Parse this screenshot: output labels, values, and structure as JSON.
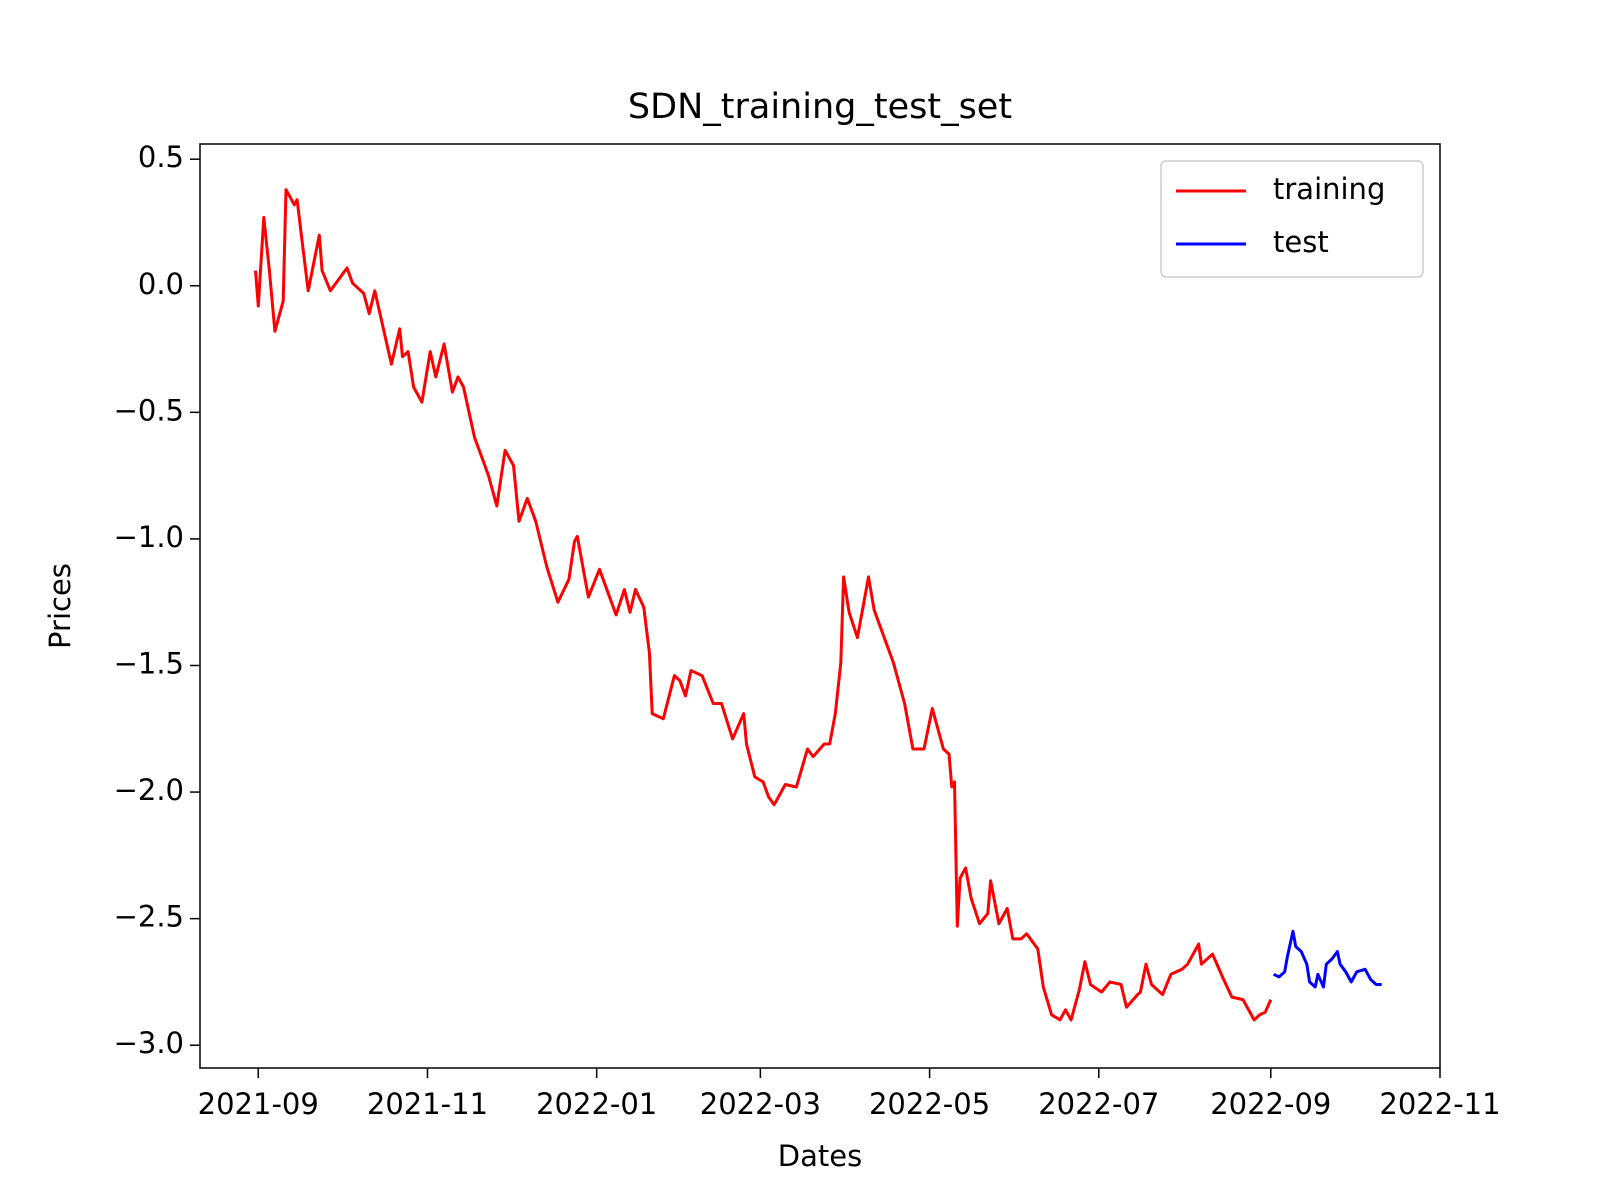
{
  "chart_data": {
    "type": "line",
    "title": "SDN_training_test_set",
    "x_label": "Dates",
    "y_label": "Prices",
    "legend": "upper right",
    "xlim": [
      "2021-08-11",
      "2022-11-01"
    ],
    "ylim": [
      -3.09,
      0.56
    ],
    "xticks": [
      "2021-09",
      "2021-11",
      "2022-01",
      "2022-03",
      "2022-05",
      "2022-07",
      "2022-09",
      "2022-11"
    ],
    "yticks": [
      0.5,
      {
        "value": 0,
        "label": "0.0"
      },
      {
        "value": -0.5,
        "label": "−0.5"
      },
      {
        "value": -1.0,
        "label": "−1.0"
      },
      {
        "value": -1.5,
        "label": "−1.5"
      },
      {
        "value": -2.0,
        "label": "−2.0"
      },
      {
        "value": -2.5,
        "label": "−2.5"
      },
      {
        "value": -3.0,
        "label": "−3.0"
      }
    ],
    "series": [
      {
        "name": "training",
        "color": "#ff0000",
        "x": [
          "2021-08-31",
          "2021-09-01",
          "2021-09-03",
          "2021-09-05",
          "2021-09-07",
          "2021-09-10",
          "2021-09-11",
          "2021-09-14",
          "2021-09-15",
          "2021-09-17",
          "2021-09-19",
          "2021-09-23",
          "2021-09-24",
          "2021-09-27",
          "2021-10-03",
          "2021-10-05",
          "2021-10-09",
          "2021-10-11",
          "2021-10-13",
          "2021-10-19",
          "2021-10-22",
          "2021-10-23",
          "2021-10-25",
          "2021-10-27",
          "2021-10-30",
          "2021-11-02",
          "2021-11-04",
          "2021-11-07",
          "2021-11-10",
          "2021-11-12",
          "2021-11-14",
          "2021-11-18",
          "2021-11-21",
          "2021-11-23",
          "2021-11-26",
          "2021-11-29",
          "2021-12-02",
          "2021-12-04",
          "2021-12-07",
          "2021-12-10",
          "2021-12-14",
          "2021-12-18",
          "2021-12-22",
          "2021-12-24",
          "2021-12-25",
          "2021-12-29",
          "2022-01-02",
          "2022-01-08",
          "2022-01-11",
          "2022-01-13",
          "2022-01-15",
          "2022-01-18",
          "2022-01-20",
          "2022-01-21",
          "2022-01-25",
          "2022-01-29",
          "2022-01-31",
          "2022-02-02",
          "2022-02-04",
          "2022-02-08",
          "2022-02-12",
          "2022-02-15",
          "2022-02-19",
          "2022-02-23",
          "2022-02-24",
          "2022-02-27",
          "2022-03-02",
          "2022-03-04",
          "2022-03-06",
          "2022-03-10",
          "2022-03-14",
          "2022-03-18",
          "2022-03-20",
          "2022-03-24",
          "2022-03-26",
          "2022-03-28",
          "2022-03-30",
          "2022-03-31",
          "2022-04-02",
          "2022-04-05",
          "2022-04-07",
          "2022-04-09",
          "2022-04-11",
          "2022-04-14",
          "2022-04-18",
          "2022-04-22",
          "2022-04-25",
          "2022-04-29",
          "2022-05-02",
          "2022-05-06",
          "2022-05-08",
          "2022-05-09",
          "2022-05-10",
          "2022-05-11",
          "2022-05-12",
          "2022-05-14",
          "2022-05-16",
          "2022-05-19",
          "2022-05-22",
          "2022-05-23",
          "2022-05-26",
          "2022-05-29",
          "2022-05-31",
          "2022-06-03",
          "2022-06-05",
          "2022-06-09",
          "2022-06-11",
          "2022-06-14",
          "2022-06-17",
          "2022-06-19",
          "2022-06-21",
          "2022-06-24",
          "2022-06-26",
          "2022-06-28",
          "2022-07-02",
          "2022-07-05",
          "2022-07-09",
          "2022-07-11",
          "2022-07-15",
          "2022-07-16",
          "2022-07-18",
          "2022-07-20",
          "2022-07-24",
          "2022-07-27",
          "2022-07-31",
          "2022-08-02",
          "2022-08-06",
          "2022-08-07",
          "2022-08-11",
          "2022-08-15",
          "2022-08-18",
          "2022-08-22",
          "2022-08-26",
          "2022-08-28",
          "2022-08-30",
          "2022-09-01"
        ],
        "values": [
          0.06,
          -0.08,
          0.27,
          0.06,
          -0.18,
          -0.06,
          0.38,
          0.32,
          0.34,
          0.16,
          -0.02,
          0.2,
          0.06,
          -0.02,
          0.07,
          0.01,
          -0.03,
          -0.11,
          -0.02,
          -0.31,
          -0.17,
          -0.28,
          -0.26,
          -0.4,
          -0.46,
          -0.26,
          -0.36,
          -0.23,
          -0.42,
          -0.36,
          -0.4,
          -0.6,
          -0.69,
          -0.75,
          -0.87,
          -0.65,
          -0.71,
          -0.93,
          -0.84,
          -0.93,
          -1.11,
          -1.25,
          -1.16,
          -1.01,
          -0.99,
          -1.23,
          -1.12,
          -1.3,
          -1.2,
          -1.29,
          -1.2,
          -1.27,
          -1.45,
          -1.69,
          -1.71,
          -1.54,
          -1.56,
          -1.62,
          -1.52,
          -1.54,
          -1.65,
          -1.65,
          -1.79,
          -1.69,
          -1.81,
          -1.94,
          -1.96,
          -2.02,
          -2.05,
          -1.97,
          -1.98,
          -1.83,
          -1.86,
          -1.81,
          -1.81,
          -1.69,
          -1.49,
          -1.15,
          -1.29,
          -1.39,
          -1.27,
          -1.15,
          -1.28,
          -1.37,
          -1.49,
          -1.65,
          -1.83,
          -1.83,
          -1.67,
          -1.83,
          -1.85,
          -1.98,
          -1.96,
          -2.53,
          -2.34,
          -2.3,
          -2.42,
          -2.52,
          -2.48,
          -2.35,
          -2.52,
          -2.46,
          -2.58,
          -2.58,
          -2.56,
          -2.62,
          -2.77,
          -2.88,
          -2.9,
          -2.86,
          -2.9,
          -2.78,
          -2.67,
          -2.76,
          -2.79,
          -2.75,
          -2.76,
          -2.85,
          -2.8,
          -2.79,
          -2.68,
          -2.76,
          -2.8,
          -2.72,
          -2.7,
          -2.68,
          -2.6,
          -2.68,
          -2.64,
          -2.74,
          -2.81,
          -2.82,
          -2.9,
          -2.88,
          -2.87,
          -2.82
        ]
      },
      {
        "name": "test",
        "color": "#0000ff",
        "x": [
          "2022-09-02",
          "2022-09-04",
          "2022-09-06",
          "2022-09-07",
          "2022-09-09",
          "2022-09-10",
          "2022-09-12",
          "2022-09-14",
          "2022-09-15",
          "2022-09-17",
          "2022-09-18",
          "2022-09-20",
          "2022-09-21",
          "2022-09-23",
          "2022-09-25",
          "2022-09-26",
          "2022-09-28",
          "2022-09-30",
          "2022-10-02",
          "2022-10-05",
          "2022-10-07",
          "2022-10-09",
          "2022-10-11"
        ],
        "values": [
          -2.72,
          -2.73,
          -2.71,
          -2.65,
          -2.55,
          -2.61,
          -2.63,
          -2.68,
          -2.75,
          -2.77,
          -2.72,
          -2.77,
          -2.68,
          -2.66,
          -2.63,
          -2.68,
          -2.71,
          -2.75,
          -2.71,
          -2.7,
          -2.74,
          -2.76,
          -2.76
        ]
      }
    ]
  }
}
